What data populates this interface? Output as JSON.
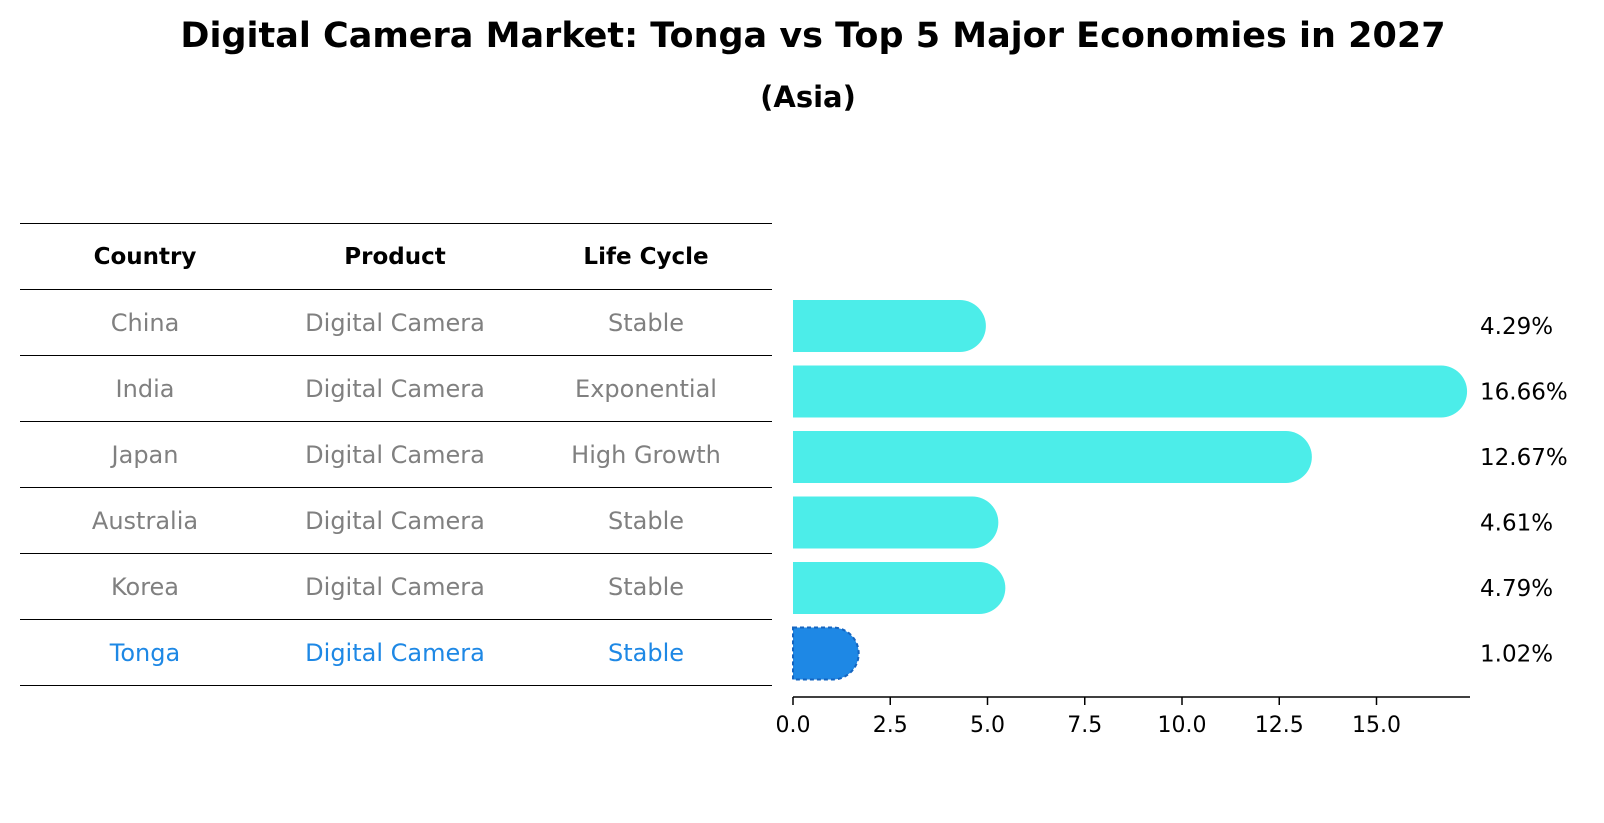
{
  "title": "Digital Camera Market: Tonga vs Top 5 Major Economies in 2027",
  "subtitle": "(Asia)",
  "table": {
    "headers": [
      "Country",
      "Product",
      "Life Cycle"
    ],
    "rows": [
      {
        "country": "China",
        "product": "Digital Camera",
        "life_cycle": "Stable"
      },
      {
        "country": "India",
        "product": "Digital Camera",
        "life_cycle": "Exponential"
      },
      {
        "country": "Japan",
        "product": "Digital Camera",
        "life_cycle": "High Growth"
      },
      {
        "country": "Australia",
        "product": "Digital Camera",
        "life_cycle": "Stable"
      },
      {
        "country": "Korea",
        "product": "Digital Camera",
        "life_cycle": "Stable"
      },
      {
        "country": "Tonga",
        "product": "Digital Camera",
        "life_cycle": "Stable"
      }
    ]
  },
  "colors": {
    "bar": "#4CEDE9",
    "highlight": "#1E88E5",
    "muted_text": "#808080"
  },
  "chart_data": {
    "type": "bar",
    "orientation": "horizontal",
    "title": "Digital Camera Market: Tonga vs Top 5 Major Economies in 2027",
    "subtitle": "(Asia)",
    "categories": [
      "China",
      "India",
      "Japan",
      "Australia",
      "Korea",
      "Tonga"
    ],
    "values": [
      4.29,
      16.66,
      12.67,
      4.61,
      4.79,
      1.02
    ],
    "value_labels": [
      "4.29%",
      "16.66%",
      "12.67%",
      "4.61%",
      "4.79%",
      "1.02%"
    ],
    "highlight": "Tonga",
    "xlim": [
      0,
      17.5
    ],
    "xticks": [
      0.0,
      2.5,
      5.0,
      7.5,
      10.0,
      12.5,
      15.0
    ],
    "xtick_labels": [
      "0.0",
      "2.5",
      "5.0",
      "7.5",
      "10.0",
      "12.5",
      "15.0"
    ],
    "xlabel": "",
    "ylabel": "",
    "grid": false
  }
}
